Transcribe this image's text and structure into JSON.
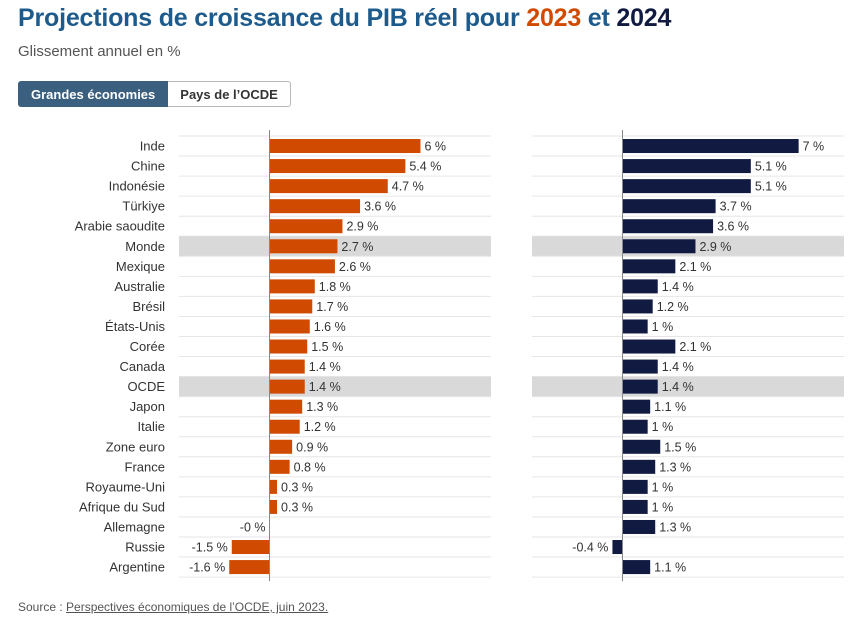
{
  "header": {
    "title_prefix": "Projections de croissance du PIB réel pour ",
    "year1": "2023",
    "title_mid": " et ",
    "year2": "2024",
    "subtitle": "Glissement annuel en %"
  },
  "tabs": [
    {
      "label": "Grandes économies",
      "active": true
    },
    {
      "label": "Pays de l’OCDE",
      "active": false
    }
  ],
  "footer": {
    "source_prefix": "Source : ",
    "source_link": "Perspectives économiques de l’OCDE, juin 2023."
  },
  "colors": {
    "series_2023": "#d04a02",
    "series_2024": "#111a40",
    "highlight_row": "#d9d9d9",
    "gridline": "#e6e6e6",
    "axis": "#888888"
  },
  "chart_data": {
    "type": "bar",
    "orientation": "horizontal",
    "unit": "%",
    "highlighted_categories": [
      "Monde",
      "OCDE"
    ],
    "categories": [
      "Inde",
      "Chine",
      "Indonésie",
      "Türkiye",
      "Arabie saoudite",
      "Monde",
      "Mexique",
      "Australie",
      "Brésil",
      "États-Unis",
      "Corée",
      "Canada",
      "OCDE",
      "Japon",
      "Italie",
      "Zone euro",
      "France",
      "Royaume-Uni",
      "Afrique du Sud",
      "Allemagne",
      "Russie",
      "Argentine"
    ],
    "series": [
      {
        "name": "2023",
        "values": [
          6,
          5.4,
          4.7,
          3.6,
          2.9,
          2.7,
          2.6,
          1.8,
          1.7,
          1.6,
          1.5,
          1.4,
          1.4,
          1.3,
          1.2,
          0.9,
          0.8,
          0.3,
          0.3,
          -0.0,
          -1.5,
          -1.6
        ],
        "labels": [
          "6 %",
          "5.4 %",
          "4.7 %",
          "3.6 %",
          "2.9 %",
          "2.7 %",
          "2.6 %",
          "1.8 %",
          "1.7 %",
          "1.6 %",
          "1.5 %",
          "1.4 %",
          "1.4 %",
          "1.3 %",
          "1.2 %",
          "0.9 %",
          "0.8 %",
          "0.3 %",
          "0.3 %",
          "-0 %",
          "-1.5 %",
          "-1.6 %"
        ],
        "xlim": [
          -3.6,
          8.8
        ]
      },
      {
        "name": "2024",
        "values": [
          7,
          5.1,
          5.1,
          3.7,
          3.6,
          2.9,
          2.1,
          1.4,
          1.2,
          1,
          2.1,
          1.4,
          1.4,
          1.1,
          1,
          1.5,
          1.3,
          1,
          1,
          1.3,
          -0.4,
          1.1
        ],
        "labels": [
          "7 %",
          "5.1 %",
          "5.1 %",
          "3.7 %",
          "3.6 %",
          "2.9 %",
          "2.1 %",
          "1.4 %",
          "1.2 %",
          "1 %",
          "2.1 %",
          "1.4 %",
          "1.4 %",
          "1.1 %",
          "1 %",
          "1.5 %",
          "1.3 %",
          "1 %",
          "1 %",
          "1.3 %",
          "-0.4 %",
          "1.1 %"
        ],
        "xlim": [
          -3.6,
          8.8
        ]
      }
    ]
  }
}
